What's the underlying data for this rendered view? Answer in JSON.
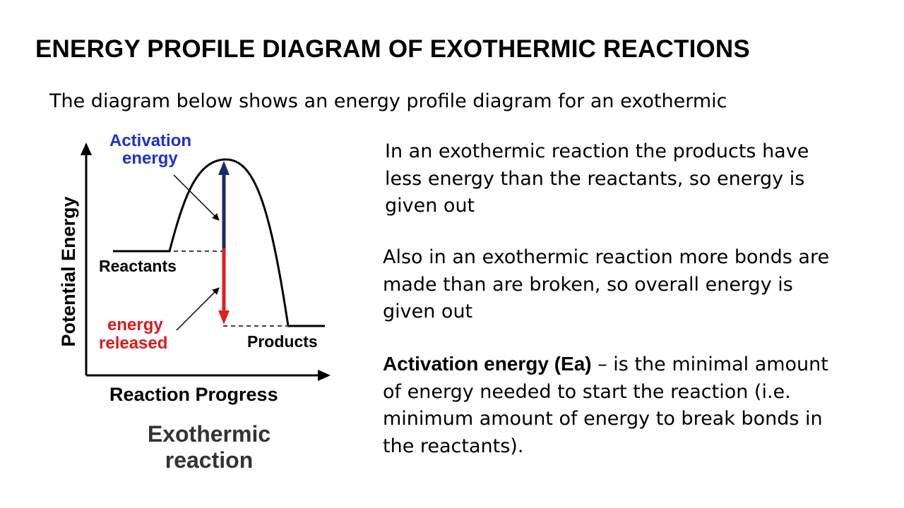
{
  "title": "ENERGY PROFILE DIAGRAM  OF EXOTHERMIC REACTIONS",
  "intro": "The diagram below shows an energy profile diagram for an exothermic",
  "diagram": {
    "y_axis_label": "Potential Energy",
    "x_axis_label": "Reaction Progress",
    "activation_label_line1": "Activation",
    "activation_label_line2": "energy",
    "released_label_line1": "energy",
    "released_label_line2": "released",
    "reactants_label": "Reactants",
    "products_label": "Products",
    "caption_line1": "Exothermic",
    "caption_line2": "reaction",
    "colors": {
      "activation_arrow": "#1a2a6b",
      "released_arrow": "#e02020",
      "activation_text": "#1f2fd0",
      "released_text": "#e01818"
    }
  },
  "paragraphs": {
    "p1": "In an exothermic reaction the products have less energy than the reactants, so energy is given out",
    "p2": "Also in an exothermic reaction more bonds are made than are broken, so overall energy is given out",
    "p3_term": "Activation energy (Ea)",
    "p3_rest": " – is the minimal amount of energy needed to start the reaction (i.e. minimum amount of energy to break bonds in the reactants)."
  }
}
